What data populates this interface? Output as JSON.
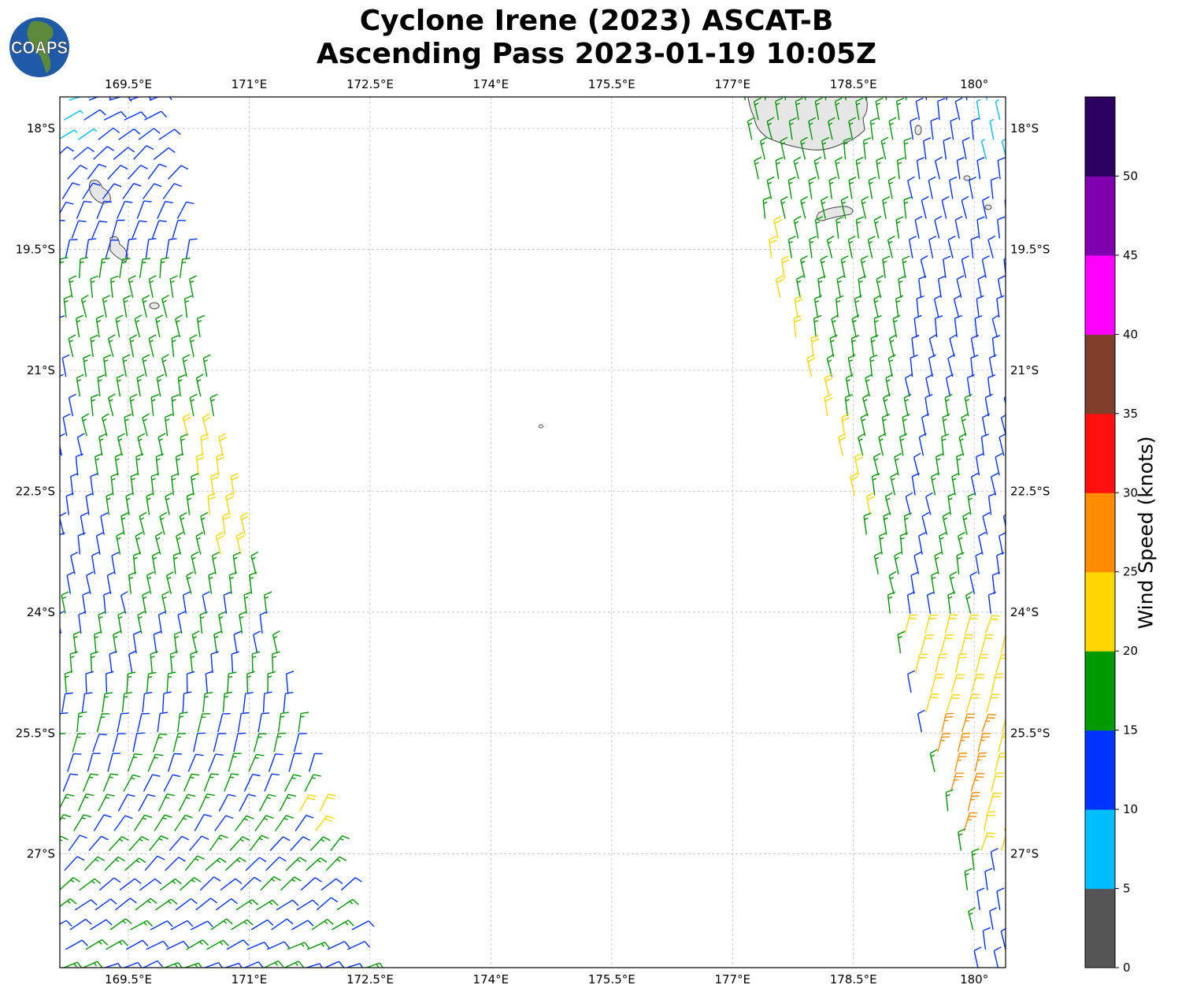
{
  "header": {
    "title_line1": "Cyclone Irene (2023) ASCAT-B",
    "title_line2": "Ascending Pass 2023-01-19 10:05Z",
    "logo_text": "COAPS"
  },
  "chart_data": {
    "type": "wind-barb-map",
    "title": "Cyclone Irene (2023) ASCAT-B Ascending Pass 2023-01-19 10:05Z",
    "lon_range": [
      168.65,
      180.39
    ],
    "lat_range": [
      -28.41,
      -17.61
    ],
    "lon_ticks": [
      169.5,
      171,
      172.5,
      174,
      175.5,
      177,
      178.5,
      180
    ],
    "lon_tick_labels": [
      "169.5°E",
      "171°E",
      "172.5°E",
      "174°E",
      "175.5°E",
      "177°E",
      "178.5°E",
      "180°"
    ],
    "lat_ticks": [
      -18,
      -19.5,
      -21,
      -22.5,
      -24,
      -25.5,
      -27
    ],
    "lat_tick_labels": [
      "18°S",
      "19.5°S",
      "21°S",
      "22.5°S",
      "24°S",
      "25.5°S",
      "27°S"
    ],
    "grid": true,
    "colorbar": {
      "label": "Wind Speed (knots)",
      "levels": [
        0,
        5,
        10,
        15,
        20,
        25,
        30,
        35,
        40,
        45,
        50,
        55
      ],
      "tick_labels": [
        "0",
        "5",
        "10",
        "15",
        "20",
        "25",
        "30",
        "35",
        "40",
        "45",
        "50"
      ],
      "colors": [
        "#555555",
        "#00bfff",
        "#0033ff",
        "#009900",
        "#ffd700",
        "#ff8c00",
        "#ff1010",
        "#7f3f2a",
        "#ff00ff",
        "#8000b0",
        "#2b0060"
      ]
    },
    "swaths": [
      {
        "name": "west",
        "east_edge": [
          [
            -17.6,
            169.8
          ],
          [
            -19.5,
            170.25
          ],
          [
            -21.8,
            170.65
          ],
          [
            -23.4,
            171.1
          ],
          [
            -26,
            171.8
          ],
          [
            -28.4,
            172.45
          ]
        ],
        "west_edge": [
          [
            -17.6,
            168.65
          ],
          [
            -28.4,
            168.65
          ]
        ]
      },
      {
        "name": "east",
        "west_edge": [
          [
            -17.6,
            177.1
          ],
          [
            -20,
            177.5
          ],
          [
            -22,
            178.3
          ],
          [
            -24,
            178.9
          ],
          [
            -25.5,
            179.3
          ],
          [
            -27,
            179.8
          ],
          [
            -28.4,
            180.0
          ]
        ],
        "east_edge": [
          [
            -17.6,
            180.39
          ],
          [
            -28.4,
            180.39
          ]
        ]
      }
    ]
  }
}
